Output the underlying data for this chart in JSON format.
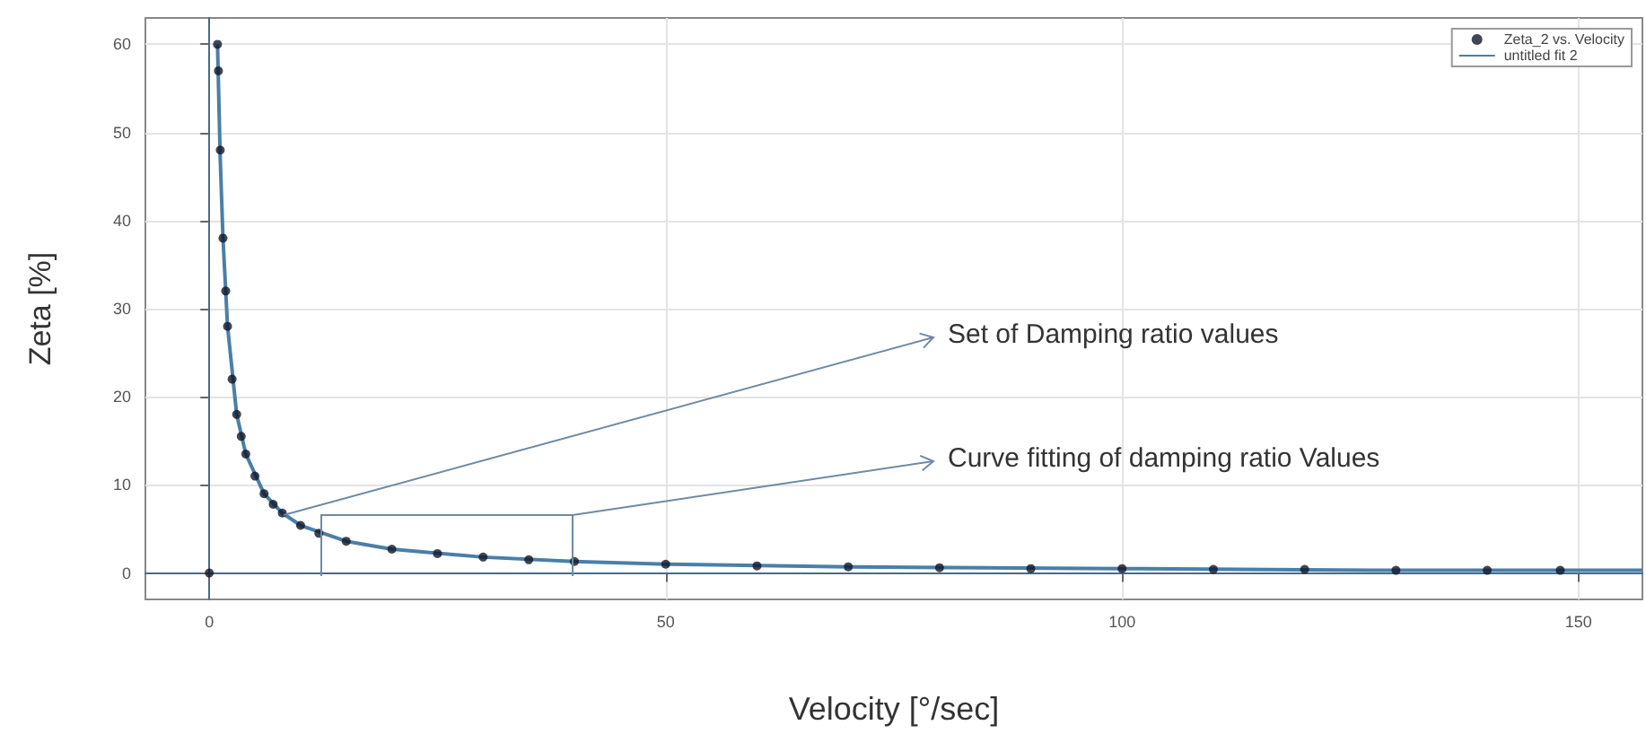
{
  "chart_data": {
    "type": "scatter",
    "xlabel": "Velocity [°/sec]",
    "ylabel": "Zeta [%]",
    "xlim": [
      -7,
      157
    ],
    "ylim": [
      -3,
      63
    ],
    "xticks": [
      0,
      50,
      100,
      150
    ],
    "yticks": [
      0,
      10,
      20,
      30,
      40,
      50,
      60
    ],
    "grid": true,
    "legend": "top right",
    "marker": "circle",
    "annotations": [
      "Set of Damping ratio values",
      "Curve fitting of damping ratio Values"
    ],
    "series": [
      {
        "name": "Zeta_2 vs. Velocity",
        "color": "#101828",
        "x": [
          0,
          0.9,
          1,
          1.2,
          1.5,
          1.8,
          2,
          2.5,
          3,
          3.5,
          4,
          5,
          6,
          7,
          8,
          10,
          12,
          15,
          20,
          25,
          30,
          35,
          40,
          50,
          60,
          70,
          80,
          90,
          100,
          110,
          120,
          130,
          140,
          148
        ],
        "values": [
          0,
          60,
          57,
          48,
          38,
          32,
          28,
          22,
          18,
          15.5,
          13.5,
          11,
          9,
          7.8,
          6.8,
          5.4,
          4.5,
          3.6,
          2.7,
          2.2,
          1.8,
          1.5,
          1.3,
          1.0,
          0.8,
          0.7,
          0.6,
          0.5,
          0.5,
          0.4,
          0.4,
          0.3,
          0.3,
          0.3
        ]
      },
      {
        "name": "untitled fit 2",
        "type": "line",
        "color": "#4a7fa8",
        "marker": "none",
        "x": [
          0.9,
          1.2,
          1.5,
          2,
          3,
          4,
          6,
          8,
          10,
          15,
          20,
          30,
          40,
          50,
          70,
          100,
          130,
          157
        ],
        "values": [
          60,
          47,
          38,
          28,
          18,
          13.5,
          9,
          6.8,
          5.4,
          3.6,
          2.7,
          1.8,
          1.3,
          1.0,
          0.7,
          0.5,
          0.3,
          0.3
        ]
      }
    ]
  }
}
